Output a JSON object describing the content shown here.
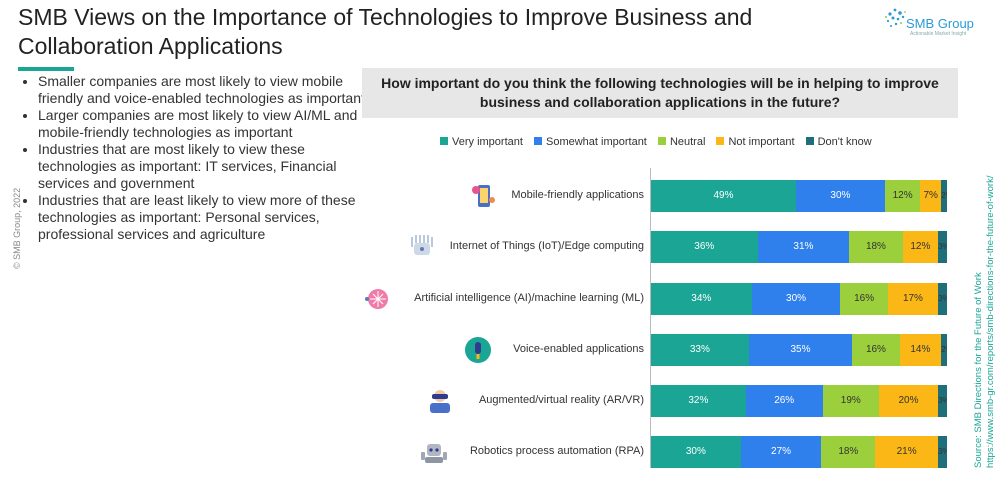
{
  "header": {
    "title": "SMB Views on the Importance of Technologies to Improve Business and Collaboration Applications",
    "logo_text": "SMB Group",
    "logo_sub": "Actionable Market Insight"
  },
  "copyright": "© SMB Group, 2022",
  "bullets": [
    "Smaller companies are most likely to view mobile friendly and voice-enabled technologies as important",
    "Larger companies are most likely to view AI/ML and mobile-friendly technologies as important",
    "Industries that are most likely to view these technologies as important: IT services, Financial services and government",
    "Industries that are least likely to view more of these technologies as important: Personal services, professional services and agriculture"
  ],
  "source": {
    "line1": "Source:  SMB Directions for the Future of Work",
    "line2": "https://www.smb-gr.com/reports/smb-directions-for-the-future-of-work/"
  },
  "colors": {
    "very_important": "#1aa594",
    "somewhat_important": "#2f80ed",
    "neutral": "#9ccf3c",
    "not_important": "#fbb715",
    "dont_know": "#1f6f7a"
  },
  "icons": [
    "mobile-app-icon",
    "iot-icon",
    "ai-brain-icon",
    "microphone-icon",
    "vr-headset-icon",
    "robot-icon"
  ],
  "chart_data": {
    "type": "bar",
    "orientation": "horizontal",
    "stacked": true,
    "title": "How important do you think the following technologies will be in helping to improve business and collaboration applications in the future?",
    "legend_position": "top",
    "categories": [
      "Mobile-friendly applications",
      "Internet of Things (IoT)/Edge computing",
      "Artificial intelligence (AI)/machine learning (ML)",
      "Voice-enabled applications",
      "Augmented/virtual reality (AR/VR)",
      "Robotics process automation (RPA)"
    ],
    "series": [
      {
        "name": "Very important",
        "values": [
          49,
          36,
          34,
          33,
          32,
          30
        ]
      },
      {
        "name": "Somewhat important",
        "values": [
          30,
          31,
          30,
          35,
          26,
          27
        ]
      },
      {
        "name": "Neutral",
        "values": [
          12,
          18,
          16,
          16,
          19,
          18
        ]
      },
      {
        "name": "Not important",
        "values": [
          7,
          12,
          17,
          14,
          20,
          21
        ]
      },
      {
        "name": "Don't know",
        "values": [
          2,
          3,
          3,
          2,
          3,
          3
        ]
      }
    ],
    "labels": [
      [
        "49%",
        "30%",
        "12%",
        "7%",
        "2%"
      ],
      [
        "36%",
        "31%",
        "18%",
        "12%",
        "3%"
      ],
      [
        "34%",
        "30%",
        "16%",
        "17%",
        "3%"
      ],
      [
        "33%",
        "35%",
        "16%",
        "14%",
        "2%"
      ],
      [
        "32%",
        "26%",
        "19%",
        "20%",
        "3%"
      ],
      [
        "30%",
        "27%",
        "18%",
        "21%",
        "3%"
      ]
    ]
  }
}
